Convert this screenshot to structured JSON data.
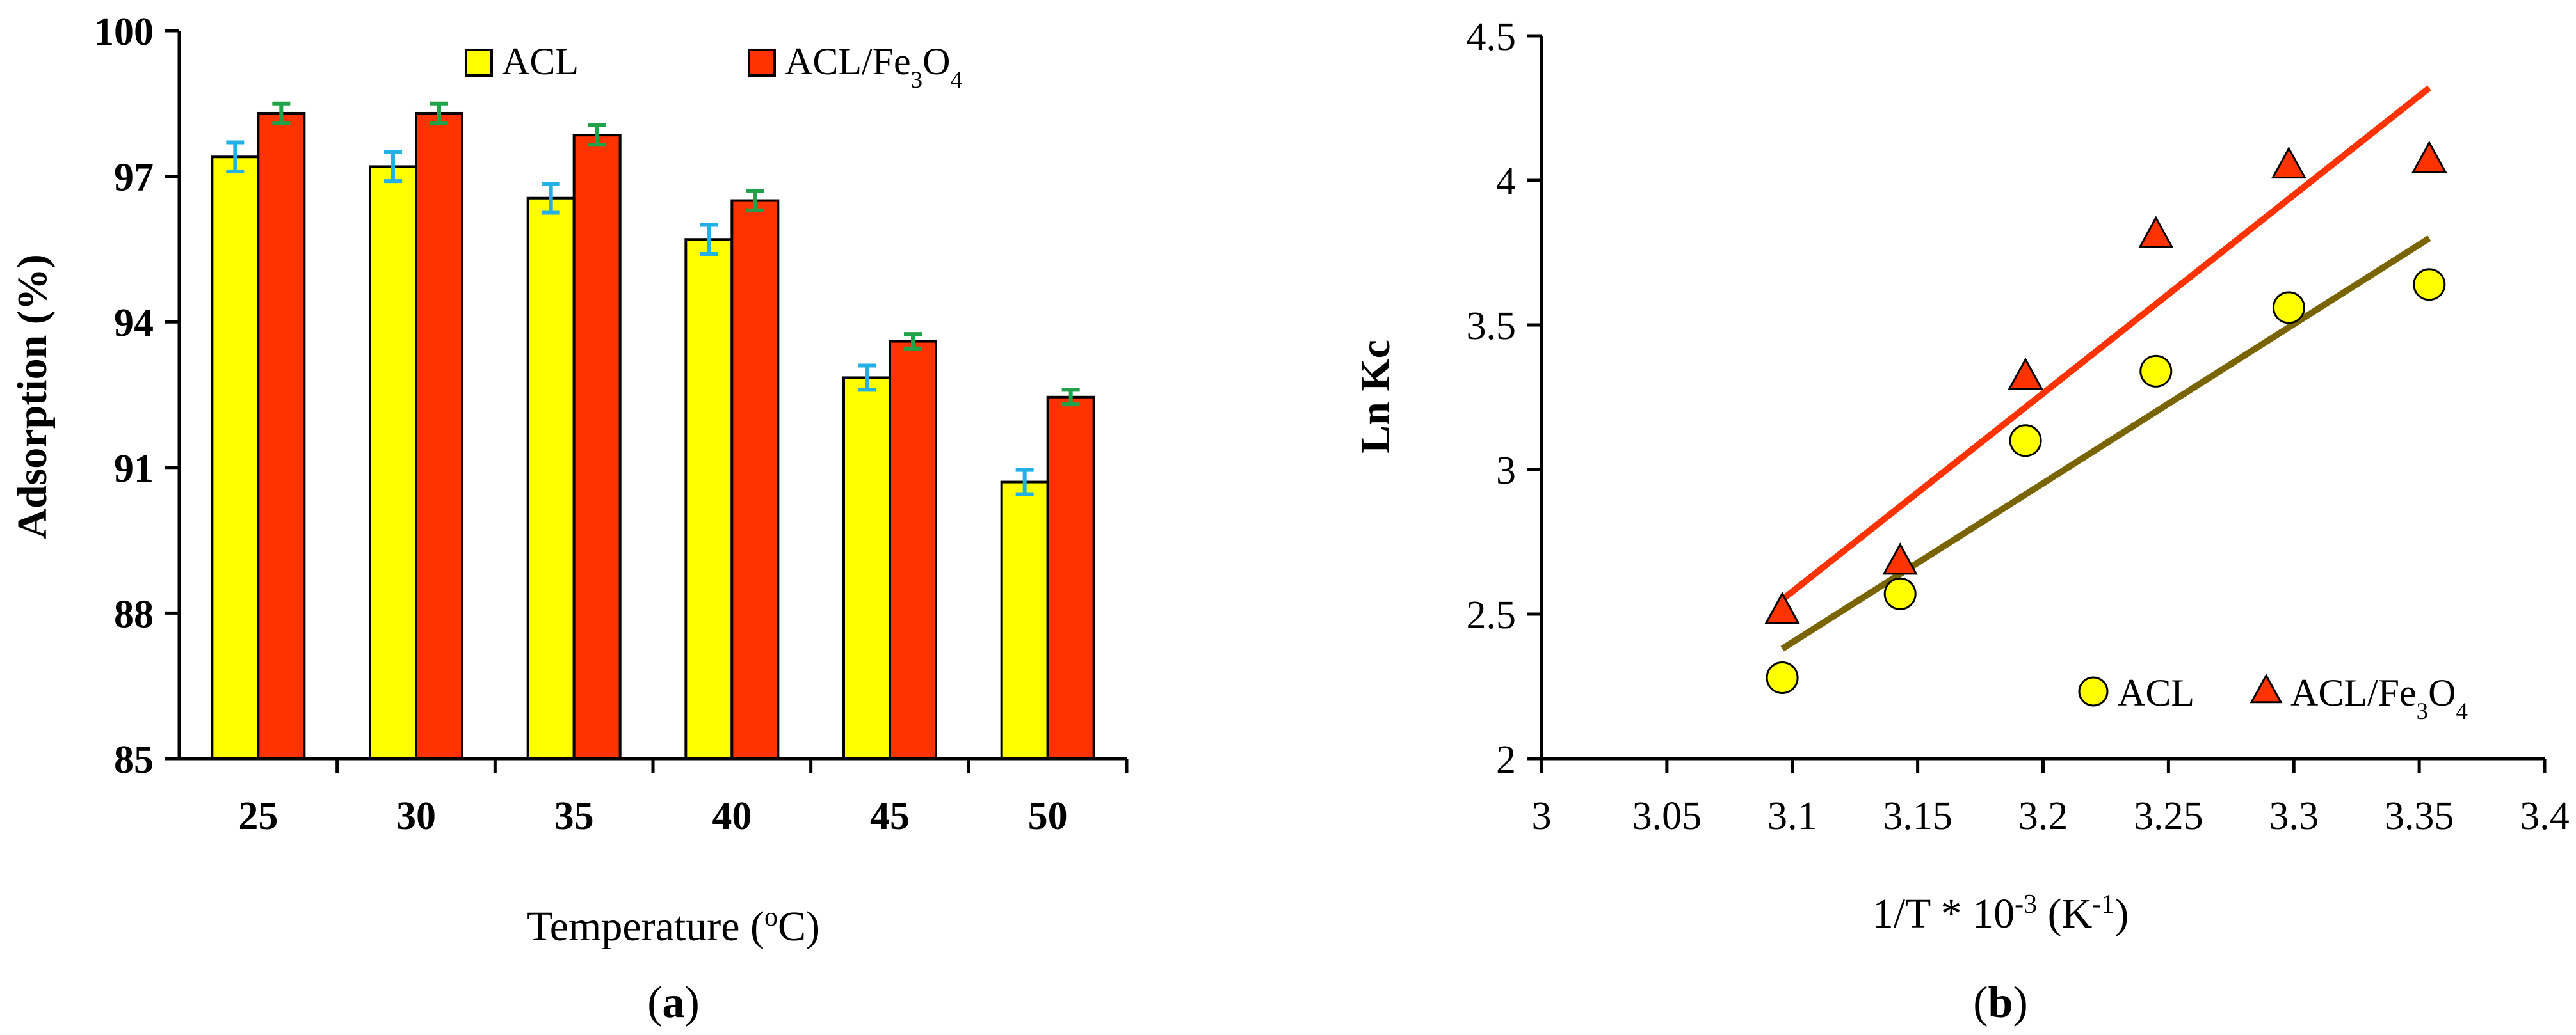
{
  "chart_data": [
    {
      "id": "a",
      "type": "bar",
      "panel_label": "(a)",
      "panel_letter": "a",
      "xlabel": "Temperature (oC)",
      "xlabel_base": "Temperature (",
      "xlabel_sup": "o",
      "xlabel_tail": "C)",
      "ylabel": "Adsorption (%)",
      "categories": [
        "25",
        "30",
        "35",
        "40",
        "45",
        "50"
      ],
      "ylim": [
        85,
        100
      ],
      "yticks": [
        "85",
        "88",
        "91",
        "94",
        "97",
        "100"
      ],
      "legend_position": "top",
      "series": [
        {
          "name": "ACL",
          "color": "#FFFF00",
          "error_color": "#22B0E6",
          "values": [
            97.4,
            97.2,
            96.55,
            95.7,
            92.85,
            90.7
          ],
          "errors": [
            0.3,
            0.3,
            0.3,
            0.3,
            0.25,
            0.25
          ]
        },
        {
          "name": "ACL/Fe3O4",
          "color": "#FF3300",
          "error_color": "#1FA24A",
          "values": [
            98.3,
            98.3,
            97.85,
            96.5,
            93.6,
            92.45
          ],
          "errors": [
            0.2,
            0.2,
            0.2,
            0.2,
            0.15,
            0.15
          ]
        }
      ]
    },
    {
      "id": "b",
      "type": "scatter",
      "panel_label": "(b)",
      "panel_letter": "b",
      "xlabel": "1/T * 10-3 (K-1)",
      "xlabel_parts": [
        "1/T * 10",
        "-3",
        " (K",
        "-1",
        ")"
      ],
      "ylabel": "Ln Kc",
      "xlim": [
        3.0,
        3.4
      ],
      "ylim": [
        2.0,
        4.5
      ],
      "xticks": [
        "3",
        "3.05",
        "3.1",
        "3.15",
        "3.2",
        "3.25",
        "3.3",
        "3.35",
        "3.4"
      ],
      "yticks": [
        "2",
        "2.5",
        "3",
        "3.5",
        "4",
        "4.5"
      ],
      "legend_position": "bottom-right",
      "series": [
        {
          "name": "ACL",
          "marker": "circle",
          "color": "#FFFF00",
          "line_color": "#7A6400",
          "x": [
            3.096,
            3.143,
            3.193,
            3.245,
            3.298,
            3.354
          ],
          "y": [
            2.28,
            2.57,
            3.1,
            3.34,
            3.56,
            3.64
          ],
          "trendline": {
            "x": [
              3.096,
              3.354
            ],
            "y": [
              2.38,
              3.8
            ]
          }
        },
        {
          "name": "ACL/Fe3O4",
          "marker": "triangle",
          "color": "#FF3300",
          "line_color": "#FF3300",
          "x": [
            3.096,
            3.143,
            3.193,
            3.245,
            3.298,
            3.354
          ],
          "y": [
            2.51,
            2.68,
            3.32,
            3.81,
            4.05,
            4.07
          ],
          "trendline": {
            "x": [
              3.096,
              3.354
            ],
            "y": [
              2.55,
              4.32
            ]
          }
        }
      ]
    }
  ]
}
